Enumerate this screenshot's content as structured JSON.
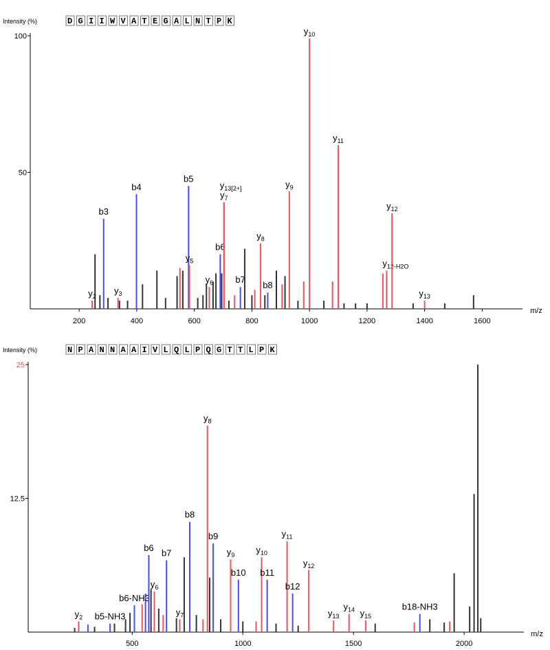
{
  "chart_data": [
    {
      "type": "bar",
      "ylabel": "Intensity (%)",
      "xlabel": "m/z",
      "sequence": [
        "D",
        "G",
        "I",
        "I",
        "W",
        "V",
        "A",
        "T",
        "E",
        "G",
        "A",
        "L",
        "N",
        "T",
        "P",
        "K"
      ],
      "xlim": [
        30,
        1740
      ],
      "ylim": [
        0,
        100
      ],
      "xticks": [
        200,
        400,
        600,
        800,
        1000,
        1200,
        1400,
        1600
      ],
      "yticks": [
        {
          "value": 100,
          "label": "100",
          "color": "#000000"
        },
        {
          "value": 50,
          "label": "50",
          "color": "#000000"
        }
      ],
      "colors": {
        "y": "#e8575a",
        "b": "#4a4af0",
        "other": "#333333"
      },
      "annotated_peaks": [
        {
          "x": 245,
          "y": 3,
          "type": "y",
          "label": "y",
          "sub": "2"
        },
        {
          "x": 285,
          "y": 33,
          "type": "b",
          "label": "b3",
          "sub": ""
        },
        {
          "x": 335,
          "y": 4,
          "type": "y",
          "label": "y",
          "sub": "3"
        },
        {
          "x": 399,
          "y": 42,
          "type": "b",
          "label": "b4",
          "sub": ""
        },
        {
          "x": 580,
          "y": 45,
          "type": "b",
          "label": "b5",
          "sub": ""
        },
        {
          "x": 583,
          "y": 16,
          "type": "y",
          "label": "y",
          "sub": "5"
        },
        {
          "x": 652,
          "y": 8,
          "type": "y",
          "label": "y",
          "sub": "6"
        },
        {
          "x": 690,
          "y": 20,
          "type": "b",
          "label": "b6",
          "sub": ""
        },
        {
          "x": 703,
          "y": 39,
          "type": "y",
          "label": "y",
          "sub": "7"
        },
        {
          "x": 703,
          "y": 39,
          "type": "y",
          "label": "y",
          "sub": "13[2+]"
        },
        {
          "x": 760,
          "y": 8,
          "type": "b",
          "label": "b7",
          "sub": ""
        },
        {
          "x": 830,
          "y": 24,
          "type": "y",
          "label": "y",
          "sub": "8"
        },
        {
          "x": 855,
          "y": 6,
          "type": "b",
          "label": "b8",
          "sub": ""
        },
        {
          "x": 930,
          "y": 43,
          "type": "y",
          "label": "y",
          "sub": "9"
        },
        {
          "x": 1000,
          "y": 99,
          "type": "y",
          "label": "y",
          "sub": "10"
        },
        {
          "x": 1100,
          "y": 60,
          "type": "y",
          "label": "y",
          "sub": "11"
        },
        {
          "x": 1268,
          "y": 14,
          "type": "y",
          "label": "y",
          "sub": "12-H2O"
        },
        {
          "x": 1287,
          "y": 35,
          "type": "y",
          "label": "y",
          "sub": "12"
        },
        {
          "x": 1400,
          "y": 3,
          "type": "y",
          "label": "y",
          "sub": "13"
        }
      ],
      "other_peaks": [
        {
          "x": 255,
          "y": 20,
          "type": "other"
        },
        {
          "x": 272,
          "y": 5,
          "type": "other"
        },
        {
          "x": 300,
          "y": 4,
          "type": "other"
        },
        {
          "x": 340,
          "y": 3,
          "type": "other"
        },
        {
          "x": 368,
          "y": 3,
          "type": "other"
        },
        {
          "x": 420,
          "y": 9,
          "type": "other"
        },
        {
          "x": 470,
          "y": 14,
          "type": "other"
        },
        {
          "x": 500,
          "y": 4,
          "type": "other"
        },
        {
          "x": 540,
          "y": 12,
          "type": "other"
        },
        {
          "x": 560,
          "y": 14,
          "type": "other"
        },
        {
          "x": 612,
          "y": 4,
          "type": "other"
        },
        {
          "x": 630,
          "y": 5,
          "type": "other"
        },
        {
          "x": 642,
          "y": 9,
          "type": "other"
        },
        {
          "x": 665,
          "y": 10,
          "type": "other"
        },
        {
          "x": 675,
          "y": 13,
          "type": "other"
        },
        {
          "x": 720,
          "y": 3,
          "type": "other"
        },
        {
          "x": 775,
          "y": 22,
          "type": "other"
        },
        {
          "x": 800,
          "y": 5,
          "type": "other"
        },
        {
          "x": 845,
          "y": 5,
          "type": "other"
        },
        {
          "x": 885,
          "y": 14,
          "type": "other"
        },
        {
          "x": 915,
          "y": 12,
          "type": "other"
        },
        {
          "x": 960,
          "y": 3,
          "type": "other"
        },
        {
          "x": 1050,
          "y": 3,
          "type": "other"
        },
        {
          "x": 1120,
          "y": 2,
          "type": "other"
        },
        {
          "x": 1160,
          "y": 2,
          "type": "other"
        },
        {
          "x": 1200,
          "y": 2,
          "type": "other"
        },
        {
          "x": 1360,
          "y": 2,
          "type": "other"
        },
        {
          "x": 1470,
          "y": 2,
          "type": "other"
        },
        {
          "x": 1570,
          "y": 5,
          "type": "other"
        },
        {
          "x": 550,
          "y": 15,
          "type": "y"
        },
        {
          "x": 695,
          "y": 13,
          "type": "other"
        },
        {
          "x": 740,
          "y": 5,
          "type": "y"
        },
        {
          "x": 810,
          "y": 7,
          "type": "y"
        },
        {
          "x": 905,
          "y": 9,
          "type": "y"
        },
        {
          "x": 980,
          "y": 10,
          "type": "y"
        },
        {
          "x": 1080,
          "y": 10,
          "type": "y"
        },
        {
          "x": 1255,
          "y": 13,
          "type": "y"
        }
      ]
    },
    {
      "type": "bar",
      "ylabel": "Intensity (%)",
      "xlabel": "m/z",
      "sequence": [
        "N",
        "P",
        "A",
        "N",
        "N",
        "A",
        "A",
        "I",
        "V",
        "L",
        "Q",
        "L",
        "P",
        "Q",
        "G",
        "T",
        "T",
        "L",
        "P",
        "K"
      ],
      "xlim": [
        30,
        2270
      ],
      "ylim": [
        0,
        25
      ],
      "xticks": [
        500,
        1000,
        1500,
        2000
      ],
      "yticks": [
        {
          "value": 25,
          "label": "25",
          "color": "#e8575a"
        },
        {
          "value": 12.5,
          "label": "12.5",
          "color": "#000000"
        }
      ],
      "colors": {
        "y": "#e8575a",
        "b": "#4a4af0",
        "other": "#333333"
      },
      "annotated_peaks": [
        {
          "x": 258,
          "y": 1.0,
          "type": "y",
          "label": "y",
          "sub": "2"
        },
        {
          "x": 400,
          "y": 0.8,
          "type": "b",
          "label": "b5-NH3",
          "sub": ""
        },
        {
          "x": 510,
          "y": 2.5,
          "type": "b",
          "label": "b6-NH3",
          "sub": ""
        },
        {
          "x": 575,
          "y": 7.2,
          "type": "b",
          "label": "b6",
          "sub": ""
        },
        {
          "x": 600,
          "y": 3.8,
          "type": "y",
          "label": "y",
          "sub": "6"
        },
        {
          "x": 655,
          "y": 6.7,
          "type": "b",
          "label": "b7",
          "sub": ""
        },
        {
          "x": 715,
          "y": 1.2,
          "type": "y",
          "label": "y",
          "sub": "7"
        },
        {
          "x": 760,
          "y": 10.3,
          "type": "b",
          "label": "b8",
          "sub": ""
        },
        {
          "x": 840,
          "y": 19.3,
          "type": "y",
          "label": "y",
          "sub": "8"
        },
        {
          "x": 866,
          "y": 8.3,
          "type": "b",
          "label": "b9",
          "sub": ""
        },
        {
          "x": 945,
          "y": 6.8,
          "type": "y",
          "label": "y",
          "sub": "9"
        },
        {
          "x": 980,
          "y": 4.9,
          "type": "b",
          "label": "b10",
          "sub": ""
        },
        {
          "x": 1085,
          "y": 7.0,
          "type": "y",
          "label": "y",
          "sub": "10"
        },
        {
          "x": 1110,
          "y": 4.9,
          "type": "b",
          "label": "b11",
          "sub": ""
        },
        {
          "x": 1200,
          "y": 8.5,
          "type": "y",
          "label": "y",
          "sub": "11"
        },
        {
          "x": 1225,
          "y": 3.6,
          "type": "b",
          "label": "b12",
          "sub": ""
        },
        {
          "x": 1298,
          "y": 5.8,
          "type": "y",
          "label": "y",
          "sub": "12"
        },
        {
          "x": 1410,
          "y": 1.1,
          "type": "y",
          "label": "y",
          "sub": "13"
        },
        {
          "x": 1480,
          "y": 1.7,
          "type": "y",
          "label": "y",
          "sub": "14"
        },
        {
          "x": 1555,
          "y": 1.1,
          "type": "y",
          "label": "y",
          "sub": "15"
        },
        {
          "x": 1800,
          "y": 1.7,
          "type": "b",
          "label": "b18-NH3",
          "sub": ""
        }
      ],
      "other_peaks": [
        {
          "x": 240,
          "y": 0.4,
          "type": "other"
        },
        {
          "x": 300,
          "y": 0.7,
          "type": "b"
        },
        {
          "x": 330,
          "y": 0.5,
          "type": "other"
        },
        {
          "x": 420,
          "y": 0.8,
          "type": "other"
        },
        {
          "x": 470,
          "y": 1.2,
          "type": "other"
        },
        {
          "x": 490,
          "y": 1.8,
          "type": "other"
        },
        {
          "x": 545,
          "y": 2.6,
          "type": "y"
        },
        {
          "x": 560,
          "y": 3.6,
          "type": "b"
        },
        {
          "x": 585,
          "y": 4.0,
          "type": "other"
        },
        {
          "x": 620,
          "y": 2.2,
          "type": "other"
        },
        {
          "x": 640,
          "y": 1.6,
          "type": "y"
        },
        {
          "x": 700,
          "y": 1.3,
          "type": "other"
        },
        {
          "x": 735,
          "y": 7.0,
          "type": "other"
        },
        {
          "x": 790,
          "y": 1.6,
          "type": "other"
        },
        {
          "x": 820,
          "y": 1.2,
          "type": "y"
        },
        {
          "x": 850,
          "y": 5.1,
          "type": "other"
        },
        {
          "x": 900,
          "y": 1.2,
          "type": "other"
        },
        {
          "x": 1000,
          "y": 1.0,
          "type": "other"
        },
        {
          "x": 1060,
          "y": 1.0,
          "type": "y"
        },
        {
          "x": 1150,
          "y": 0.8,
          "type": "other"
        },
        {
          "x": 1250,
          "y": 0.6,
          "type": "other"
        },
        {
          "x": 1598,
          "y": 0.8,
          "type": "other"
        },
        {
          "x": 1775,
          "y": 0.9,
          "type": "y"
        },
        {
          "x": 1845,
          "y": 1.2,
          "type": "other"
        },
        {
          "x": 1910,
          "y": 0.9,
          "type": "other"
        },
        {
          "x": 1935,
          "y": 1.0,
          "type": "y"
        },
        {
          "x": 1955,
          "y": 5.5,
          "type": "other"
        },
        {
          "x": 2025,
          "y": 2.4,
          "type": "other"
        },
        {
          "x": 2045,
          "y": 12.9,
          "type": "other"
        },
        {
          "x": 2062,
          "y": 25.0,
          "type": "other"
        },
        {
          "x": 2075,
          "y": 1.3,
          "type": "other"
        }
      ]
    }
  ]
}
